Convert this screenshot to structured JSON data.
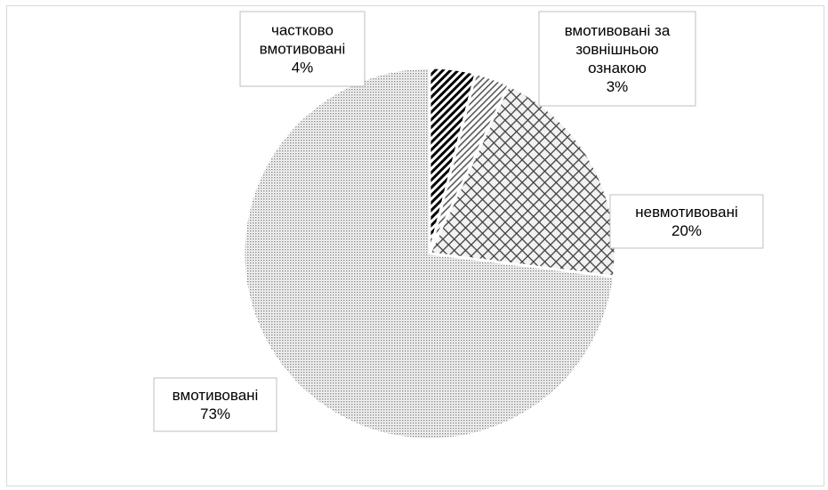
{
  "chart_data": {
    "type": "pie",
    "title": "",
    "categories": [
      "частково вмотивовані",
      "вмотивовані за зовнішньою ознакою",
      "невмотивовані",
      "вмотивовані"
    ],
    "values": [
      4,
      3,
      20,
      73
    ],
    "value_labels": [
      "4%",
      "3%",
      "20%",
      "73%"
    ],
    "label_lines": [
      [
        "частково",
        "вмотивовані"
      ],
      [
        "вмотивовані за",
        "зовнішньою",
        "ознакою"
      ],
      [
        "невмотивовані"
      ],
      [
        "вмотивовані"
      ]
    ],
    "patterns": [
      "dark-diagonal-hatch",
      "light-diagonal-hatch",
      "crosshatch",
      "fine-dots"
    ],
    "colors": [
      "#000000",
      "#595959",
      "#404040",
      "#7f7f7f"
    ],
    "start_angle_deg": 0,
    "direction": "clockwise",
    "legend": "none"
  }
}
